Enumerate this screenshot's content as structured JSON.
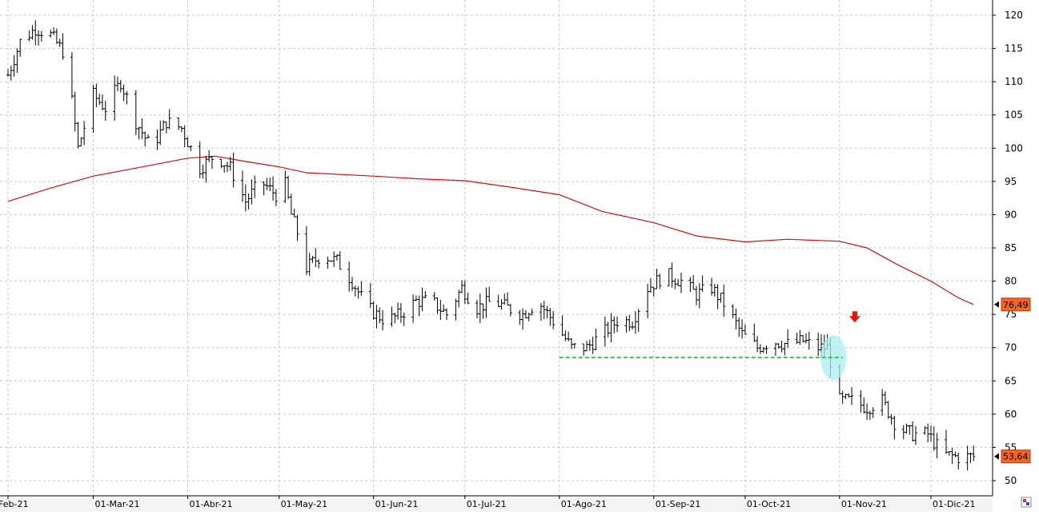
{
  "chart_data": {
    "type": "ohlc",
    "x_tick_labels": [
      "Feb-21",
      "01-Mar-21",
      "01-Abr-21",
      "01-May-21",
      "01-Jun-21",
      "01-Jul-21",
      "01-Ago-21",
      "01-Sep-21",
      "01-Oct-21",
      "01-Nov-21",
      "01-Dic-21"
    ],
    "x_tick_dates": [
      "2021-02-01",
      "2021-03-01",
      "2021-04-01",
      "2021-05-01",
      "2021-06-01",
      "2021-07-01",
      "2021-08-01",
      "2021-09-01",
      "2021-10-01",
      "2021-11-01",
      "2021-12-01"
    ],
    "y_ticks": [
      50,
      55,
      60,
      65,
      70,
      75,
      80,
      85,
      90,
      95,
      100,
      105,
      110,
      115,
      120
    ],
    "ylim": [
      48.5,
      121.5
    ],
    "grid": true,
    "price_series": {
      "description": "daily OHLC bars (approximate close path)",
      "points": [
        [
          "2021-02-01",
          111
        ],
        [
          "2021-02-05",
          116
        ],
        [
          "2021-02-10",
          118
        ],
        [
          "2021-02-15",
          117
        ],
        [
          "2021-02-20",
          114
        ],
        [
          "2021-02-24",
          100
        ],
        [
          "2021-03-01",
          108
        ],
        [
          "2021-03-05",
          106
        ],
        [
          "2021-03-10",
          110
        ],
        [
          "2021-03-15",
          104
        ],
        [
          "2021-03-20",
          100
        ],
        [
          "2021-03-25",
          104
        ],
        [
          "2021-03-30",
          103
        ],
        [
          "2021-04-05",
          97
        ],
        [
          "2021-04-10",
          99
        ],
        [
          "2021-04-15",
          97
        ],
        [
          "2021-04-20",
          92
        ],
        [
          "2021-04-25",
          95
        ],
        [
          "2021-04-30",
          93
        ],
        [
          "2021-05-01",
          99
        ],
        [
          "2021-05-05",
          90
        ],
        [
          "2021-05-08",
          86
        ],
        [
          "2021-05-10",
          82
        ],
        [
          "2021-05-15",
          84
        ],
        [
          "2021-05-20",
          83
        ],
        [
          "2021-05-25",
          80
        ],
        [
          "2021-05-30",
          76
        ],
        [
          "2021-06-05",
          74
        ],
        [
          "2021-06-10",
          75
        ],
        [
          "2021-06-15",
          77
        ],
        [
          "2021-06-20",
          77
        ],
        [
          "2021-06-25",
          75
        ],
        [
          "2021-06-30",
          79
        ],
        [
          "2021-07-05",
          76
        ],
        [
          "2021-07-10",
          77
        ],
        [
          "2021-07-15",
          76
        ],
        [
          "2021-07-20",
          75
        ],
        [
          "2021-07-25",
          77
        ],
        [
          "2021-07-30",
          74
        ],
        [
          "2021-08-05",
          70
        ],
        [
          "2021-08-10",
          70
        ],
        [
          "2021-08-15",
          72
        ],
        [
          "2021-08-20",
          74
        ],
        [
          "2021-08-25",
          74
        ],
        [
          "2021-08-30",
          79
        ],
        [
          "2021-09-05",
          81
        ],
        [
          "2021-09-10",
          80
        ],
        [
          "2021-09-15",
          78
        ],
        [
          "2021-09-20",
          79
        ],
        [
          "2021-09-25",
          76
        ],
        [
          "2021-09-30",
          72
        ],
        [
          "2021-10-05",
          70
        ],
        [
          "2021-10-10",
          71
        ],
        [
          "2021-10-15",
          70.5
        ],
        [
          "2021-10-20",
          71
        ],
        [
          "2021-10-25",
          70
        ],
        [
          "2021-10-28",
          70
        ],
        [
          "2021-11-01",
          62
        ],
        [
          "2021-11-05",
          62
        ],
        [
          "2021-11-10",
          61
        ],
        [
          "2021-11-15",
          62
        ],
        [
          "2021-11-20",
          58
        ],
        [
          "2021-11-25",
          57
        ],
        [
          "2021-11-30",
          57
        ],
        [
          "2021-12-05",
          54
        ],
        [
          "2021-12-10",
          53.5
        ],
        [
          "2021-12-15",
          53.6
        ]
      ]
    },
    "moving_average": {
      "color": "#d01010",
      "points": [
        [
          "2021-02-01",
          92
        ],
        [
          "2021-02-15",
          94
        ],
        [
          "2021-03-01",
          95.8
        ],
        [
          "2021-03-15",
          97
        ],
        [
          "2021-04-01",
          98.5
        ],
        [
          "2021-04-10",
          98.8
        ],
        [
          "2021-04-20",
          98
        ],
        [
          "2021-05-01",
          97.2
        ],
        [
          "2021-05-10",
          96.3
        ],
        [
          "2021-06-01",
          95.8
        ],
        [
          "2021-06-15",
          95.4
        ],
        [
          "2021-07-01",
          95.1
        ],
        [
          "2021-07-15",
          94.2
        ],
        [
          "2021-08-01",
          93
        ],
        [
          "2021-08-15",
          90.5
        ],
        [
          "2021-09-01",
          88.8
        ],
        [
          "2021-09-15",
          86.8
        ],
        [
          "2021-10-01",
          85.9
        ],
        [
          "2021-10-15",
          86.3
        ],
        [
          "2021-11-01",
          86
        ],
        [
          "2021-11-10",
          85
        ],
        [
          "2021-11-20",
          82.5
        ],
        [
          "2021-12-01",
          80
        ],
        [
          "2021-12-10",
          77.5
        ],
        [
          "2021-12-15",
          76.49
        ]
      ]
    },
    "support_line": {
      "value": 68.5,
      "from": "2021-08-01",
      "to": "2021-11-02",
      "color": "#33cc33",
      "style": "dashed"
    },
    "highlight_ellipse": {
      "date": "2021-10-30",
      "center_value": 68.5,
      "color": "#aaeeee"
    },
    "down_arrow": {
      "date": "2021-11-06",
      "value": 74.5,
      "color": "#ee1100"
    },
    "price_tags": [
      {
        "label": "76,49",
        "value": 76.49,
        "color": "#f26522"
      },
      {
        "label": "53,64",
        "value": 53.64,
        "color": "#f26522"
      }
    ]
  }
}
